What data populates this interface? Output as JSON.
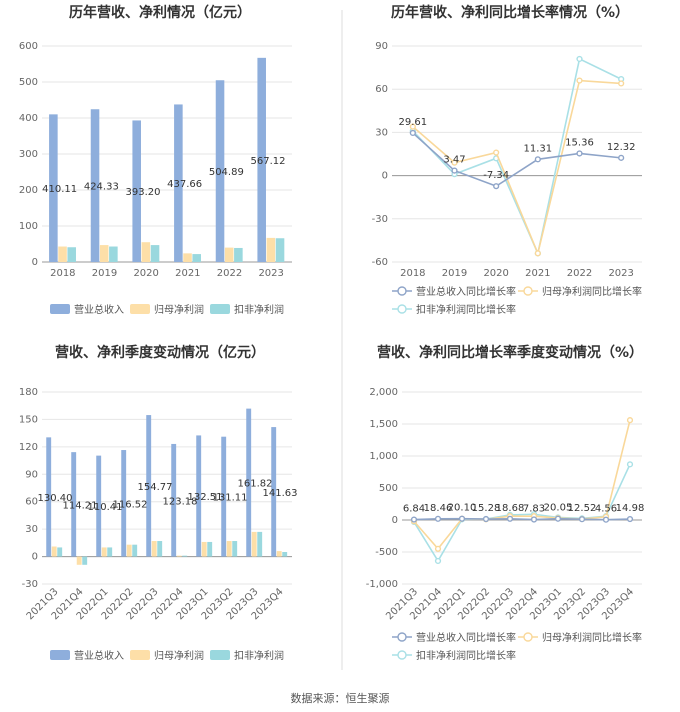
{
  "colors": {
    "revenue": "#8eaedc",
    "net": "#fddfa8",
    "deducted": "#9ad8de",
    "revenue_line": "#8ea4c8",
    "net_line": "#f9d89a",
    "deducted_line": "#a9e0e6"
  },
  "source": "数据来源：恒生聚源",
  "chart_data": [
    {
      "type": "bar",
      "title": "历年营收、净利情况（亿元）",
      "categories": [
        "2018",
        "2019",
        "2020",
        "2021",
        "2022",
        "2023"
      ],
      "ylim": [
        0,
        600
      ],
      "yticks": [
        "0",
        "100",
        "200",
        "300",
        "400",
        "500",
        "600"
      ],
      "series": [
        {
          "name": "营业总收入",
          "values": [
            410.11,
            424.33,
            393.2,
            437.66,
            504.89,
            567.12
          ],
          "labels": [
            "410.11",
            "424.33",
            "393.20",
            "437.66",
            "504.89",
            "567.12"
          ]
        },
        {
          "name": "归母净利润",
          "values": [
            43,
            47,
            55,
            24,
            40,
            67
          ]
        },
        {
          "name": "扣非净利润",
          "values": [
            41,
            43,
            47,
            22,
            39,
            66
          ]
        }
      ]
    },
    {
      "type": "line",
      "title": "历年营收、净利同比增长率情况（%）",
      "categories": [
        "2018",
        "2019",
        "2020",
        "2021",
        "2022",
        "2023"
      ],
      "ylim": [
        -60,
        90
      ],
      "yticks": [
        "-60",
        "-30",
        "0",
        "30",
        "60",
        "90"
      ],
      "series": [
        {
          "name": "营业总收入同比增长率",
          "values": [
            29.61,
            3.47,
            -7.34,
            11.31,
            15.36,
            12.32
          ],
          "labels": [
            "29.61",
            "3.47",
            "-7.34",
            "11.31",
            "15.36",
            "12.32"
          ]
        },
        {
          "name": "归母净利润同比增长率",
          "values": [
            34,
            9,
            16,
            -54,
            66,
            64
          ]
        },
        {
          "name": "扣非净利润同比增长率",
          "values": [
            31,
            1,
            12,
            -54,
            81,
            67
          ]
        }
      ]
    },
    {
      "type": "bar",
      "title": "营收、净利季度变动情况（亿元）",
      "categories": [
        "2021Q3",
        "2021Q4",
        "2022Q1",
        "2022Q2",
        "2022Q3",
        "2022Q4",
        "2023Q1",
        "2023Q2",
        "2023Q3",
        "2023Q4"
      ],
      "ylim": [
        -30,
        180
      ],
      "yticks": [
        "-30",
        "0",
        "30",
        "60",
        "90",
        "120",
        "150",
        "180"
      ],
      "series": [
        {
          "name": "营业总收入",
          "values": [
            130.4,
            114.21,
            110.41,
            116.52,
            154.77,
            123.18,
            132.51,
            131.11,
            161.82,
            141.63
          ],
          "labels": [
            "130.40",
            "114.21",
            "110.41",
            "116.52",
            "154.77",
            "123.18",
            "132.51",
            "131.11",
            "161.82",
            "141.63"
          ]
        },
        {
          "name": "归母净利润",
          "values": [
            11,
            -9,
            10,
            13,
            17,
            1,
            16,
            17,
            27,
            6
          ]
        },
        {
          "name": "扣非净利润",
          "values": [
            10,
            -9,
            10,
            13,
            17,
            1,
            16,
            17,
            27,
            5
          ]
        }
      ]
    },
    {
      "type": "line",
      "title": "营收、净利同比增长率季度变动情况（%）",
      "categories": [
        "2021Q3",
        "2021Q4",
        "2022Q1",
        "2022Q2",
        "2022Q3",
        "2022Q4",
        "2023Q1",
        "2023Q2",
        "2023Q3",
        "2023Q4"
      ],
      "ylim": [
        -1000,
        2000
      ],
      "yticks": [
        "-1,000",
        "-500",
        "0",
        "500",
        "1,000",
        "1,500",
        "2,000"
      ],
      "series": [
        {
          "name": "营业总收入同比增长率",
          "values": [
            6.84,
            18.46,
            20.1,
            15.28,
            18.68,
            7.83,
            20.05,
            12.52,
            4.56,
            14.98
          ],
          "labels": [
            "6.84",
            "18.46",
            "20.10",
            "15.28",
            "18.68",
            "7.83",
            "20.05",
            "12.52",
            "4.56",
            "14.98"
          ]
        },
        {
          "name": "归母净利润同比增长率",
          "values": [
            -20,
            -450,
            20,
            10,
            60,
            60,
            30,
            15,
            50,
            1560
          ]
        },
        {
          "name": "扣非净利润同比增长率",
          "values": [
            -30,
            -640,
            10,
            15,
            80,
            90,
            40,
            25,
            60,
            870
          ]
        }
      ]
    }
  ]
}
